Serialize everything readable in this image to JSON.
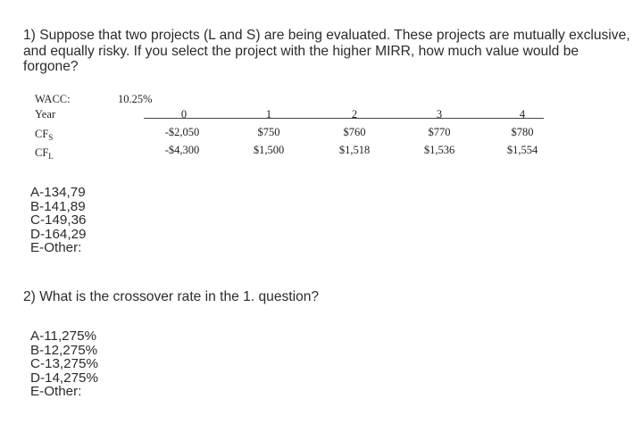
{
  "question1": {
    "text": "1) Suppose that two projects (L and S) are being evaluated. These projects are mutually exclusive, and equally risky. If you select the project with the higher MIRR, how much value would be forgone?"
  },
  "table": {
    "wacc_label": "WACC:",
    "wacc_value": "10.25%",
    "year_label": "Year",
    "cfs_label": "CF",
    "cfs_sub": "S",
    "cfl_label": "CF",
    "cfl_sub": "L",
    "years": [
      "0",
      "1",
      "2",
      "3",
      "4"
    ],
    "cfs": [
      "-$2,050",
      "$750",
      "$760",
      "$770",
      "$780"
    ],
    "cfl": [
      "-$4,300",
      "$1,500",
      "$1,518",
      "$1,536",
      "$1,554"
    ]
  },
  "options1": [
    "A-134,79",
    "B-141,89",
    "C-149,36",
    "D-164,29",
    "E-Other:"
  ],
  "question2": {
    "text": "2) What is the crossover rate in the 1. question?"
  },
  "options2": [
    "A-11,275%",
    "B-12,275%",
    "C-13,275%",
    "D-14,275%",
    "E-Other:"
  ]
}
